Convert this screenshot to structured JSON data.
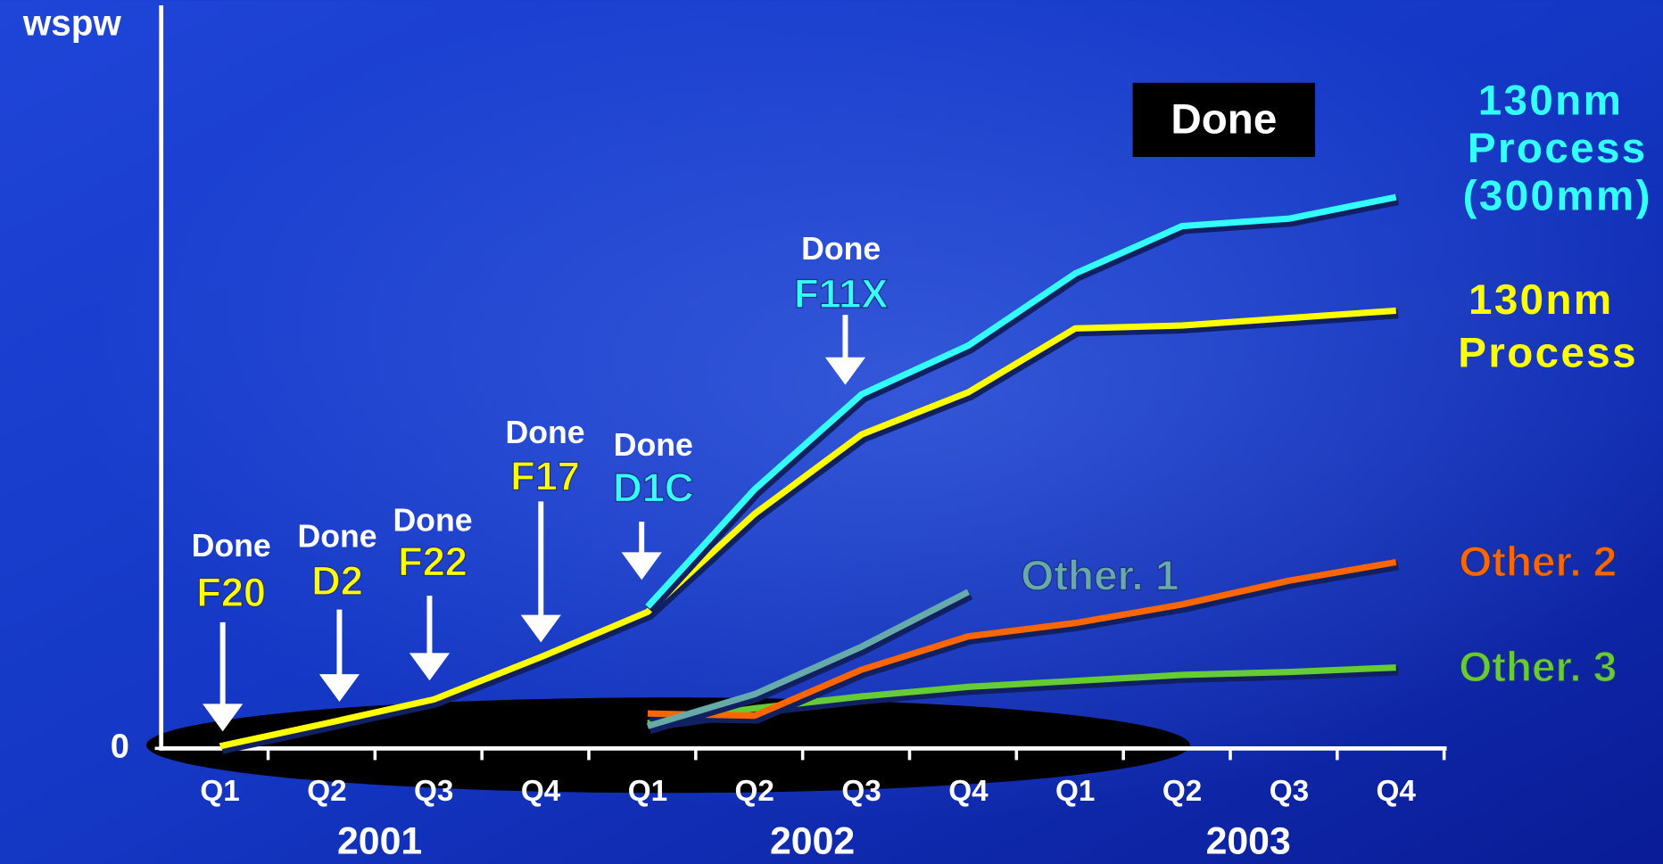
{
  "chart_data": {
    "type": "line",
    "y_label": "wspw",
    "ylim": [
      0,
      100
    ],
    "yticks": [
      0
    ],
    "categories": [
      "Q1",
      "Q2",
      "Q3",
      "Q4",
      "Q1",
      "Q2",
      "Q3",
      "Q4",
      "Q1",
      "Q2",
      "Q3",
      "Q4"
    ],
    "year_labels": [
      "2001",
      "2002",
      "2003"
    ],
    "series": [
      {
        "name": "130nm Process (300mm)",
        "color": "#33ffff",
        "values": [
          null,
          null,
          null,
          null,
          19.1,
          34.9,
          47.7,
          54.3,
          64,
          70.4,
          71.4,
          74.3
        ]
      },
      {
        "name": "130nm Process",
        "color": "#ffff00",
        "values": [
          0.3,
          3.4,
          6.6,
          12.3,
          18.4,
          31.6,
          42.3,
          48,
          56.6,
          57,
          58,
          59
        ]
      },
      {
        "name": "Other. 1",
        "color": "#66aaaa",
        "values": [
          null,
          null,
          null,
          null,
          3,
          7.3,
          13.7,
          21.1,
          null,
          null,
          null,
          null
        ]
      },
      {
        "name": "Other. 2",
        "color": "#ff6600",
        "values": [
          null,
          null,
          null,
          null,
          4.7,
          4.4,
          10.6,
          15.1,
          16.9,
          19.4,
          22.6,
          25.1
        ]
      },
      {
        "name": "Other. 3",
        "color": "#66cc33",
        "values": [
          null,
          null,
          null,
          null,
          3.4,
          5.4,
          7,
          8.3,
          9.1,
          9.9,
          10.3,
          10.9
        ]
      }
    ],
    "done_box": "Done",
    "milestones": [
      {
        "status": "Done",
        "name": "F20",
        "color": "#ffff00"
      },
      {
        "status": "Done",
        "name": "D2",
        "color": "#ffff00"
      },
      {
        "status": "Done",
        "name": "F22",
        "color": "#ffff00"
      },
      {
        "status": "Done",
        "name": "F17",
        "color": "#ffff00"
      },
      {
        "status": "Done",
        "name": "D1C",
        "color": "#33ffff"
      },
      {
        "status": "Done",
        "name": "F11X",
        "color": "#33ffff"
      }
    ]
  }
}
